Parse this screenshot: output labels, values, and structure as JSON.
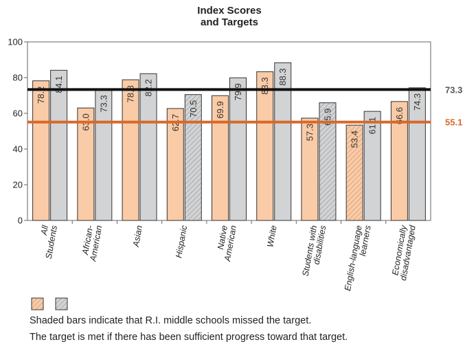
{
  "chart_data": {
    "type": "bar",
    "title": "Index Scores\nand Targets",
    "categories": [
      "All\nStudents",
      "African-\nAmerican",
      "Asian",
      "Hispanic",
      "Native\nAmerican",
      "White",
      "Students with\ndisabilities",
      "English-language\nlearners",
      "Economically\ndisadvantaged"
    ],
    "series": [
      {
        "values": [
          78.2,
          63.0,
          78.8,
          62.7,
          69.9,
          83.3,
          57.3,
          53.4,
          66.6
        ],
        "missed": [
          false,
          false,
          false,
          false,
          false,
          false,
          false,
          true,
          false
        ],
        "color": "#f9cba6"
      },
      {
        "values": [
          84.1,
          73.3,
          82.2,
          70.5,
          79.9,
          88.3,
          65.9,
          61.1,
          74.3
        ],
        "missed": [
          false,
          false,
          false,
          true,
          false,
          false,
          true,
          false,
          false
        ],
        "color": "#d2d3d5"
      }
    ],
    "value_labels": [
      [
        "78.2",
        "63.0",
        "78.8",
        "62.7",
        "69.9",
        "83.3",
        "57.3",
        "53.4",
        "66.6"
      ],
      [
        "84.1",
        "73.3",
        "82.2",
        "70.5",
        "79.9",
        "88.3",
        "65.9",
        "61.1",
        "74.3"
      ]
    ],
    "targets": [
      {
        "value": 73.3,
        "label": "73.3",
        "color": "#111111",
        "label_color": "#555555"
      },
      {
        "value": 55.1,
        "label": "55.1",
        "color": "#d8692a",
        "label_color": "#d8692a"
      }
    ],
    "ylim": [
      0,
      100
    ],
    "yticks": [
      0,
      20,
      40,
      60,
      80,
      100
    ],
    "ytick_labels": [
      "0",
      "20",
      "40",
      "60",
      "80",
      "100"
    ],
    "xlabel": "",
    "ylabel": "",
    "grid": false
  },
  "notes": {
    "line1": "Shaded bars indicate that R.I. middle schools missed the target.",
    "line2": "The target is met if there has been sufficient progress toward that target."
  }
}
